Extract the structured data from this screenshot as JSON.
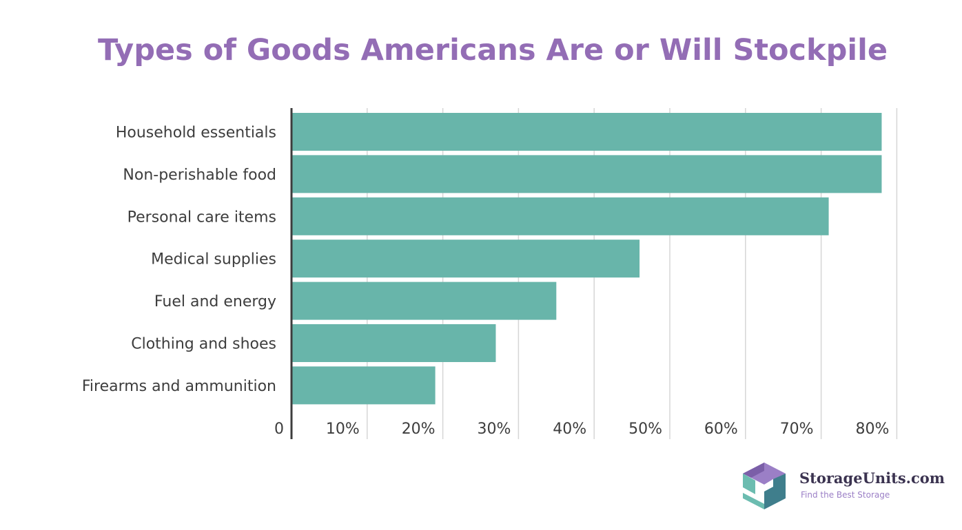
{
  "chart_data": {
    "type": "bar",
    "orientation": "horizontal",
    "title": "Types of Goods Americans Are or Will Stockpile",
    "categories": [
      "Household essentials",
      "Non-perishable food",
      "Personal care items",
      "Medical supplies",
      "Fuel and energy",
      "Clothing and shoes",
      "Firearms and ammunition"
    ],
    "values": [
      78,
      78,
      71,
      46,
      35,
      27,
      19
    ],
    "unit": "%",
    "xlim": [
      0,
      80
    ],
    "ticks": [
      0,
      10,
      20,
      30,
      40,
      50,
      60,
      70,
      80
    ],
    "tick_labels": [
      "0",
      "10%",
      "20%",
      "30%",
      "40%",
      "50%",
      "60%",
      "70%",
      "80%"
    ],
    "grid": true,
    "bar_color": "#68b5aa",
    "title_color": "#936db5"
  },
  "brand": {
    "name": "StorageUnits.com",
    "tagline": "Find the Best Storage",
    "colors": {
      "purple": "#9b7fc6",
      "dark_purple": "#7b5fa8",
      "teal": "#6cbcb0",
      "dark_teal": "#3f7e8c"
    }
  }
}
